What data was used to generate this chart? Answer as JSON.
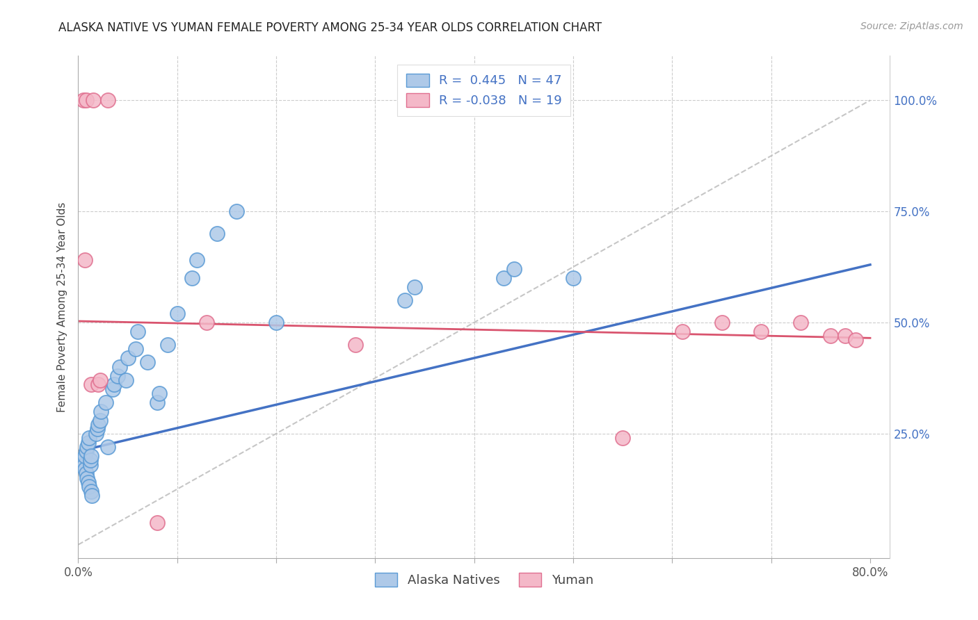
{
  "title": "ALASKA NATIVE VS YUMAN FEMALE POVERTY AMONG 25-34 YEAR OLDS CORRELATION CHART",
  "source": "Source: ZipAtlas.com",
  "ylabel": "Female Poverty Among 25-34 Year Olds",
  "xlim": [
    0.0,
    0.82
  ],
  "ylim": [
    -0.03,
    1.1
  ],
  "alaska_color": "#aec9e8",
  "alaska_edge_color": "#5b9bd5",
  "alaska_line_color": "#4472c4",
  "yuman_color": "#f4b8c8",
  "yuman_edge_color": "#e07090",
  "yuman_line_color": "#d9546e",
  "diagonal_color": "#c0c0c0",
  "alaska_x": [
    0.005,
    0.006,
    0.007,
    0.007,
    0.008,
    0.008,
    0.009,
    0.009,
    0.01,
    0.01,
    0.011,
    0.011,
    0.012,
    0.012,
    0.013,
    0.013,
    0.014,
    0.018,
    0.019,
    0.02,
    0.022,
    0.023,
    0.028,
    0.03,
    0.035,
    0.036,
    0.04,
    0.042,
    0.048,
    0.05,
    0.058,
    0.06,
    0.07,
    0.08,
    0.082,
    0.09,
    0.1,
    0.115,
    0.12,
    0.14,
    0.16,
    0.2,
    0.33,
    0.34,
    0.43,
    0.44,
    0.5
  ],
  "alaska_y": [
    0.19,
    0.18,
    0.17,
    0.2,
    0.16,
    0.21,
    0.15,
    0.22,
    0.14,
    0.23,
    0.13,
    0.24,
    0.18,
    0.19,
    0.12,
    0.2,
    0.11,
    0.25,
    0.26,
    0.27,
    0.28,
    0.3,
    0.32,
    0.22,
    0.35,
    0.36,
    0.38,
    0.4,
    0.37,
    0.42,
    0.44,
    0.48,
    0.41,
    0.32,
    0.34,
    0.45,
    0.52,
    0.6,
    0.64,
    0.7,
    0.75,
    0.5,
    0.55,
    0.58,
    0.6,
    0.62,
    0.6
  ],
  "yuman_x": [
    0.005,
    0.008,
    0.015,
    0.03,
    0.007,
    0.013,
    0.02,
    0.022,
    0.08,
    0.13,
    0.28,
    0.55,
    0.61,
    0.65,
    0.69,
    0.73,
    0.76,
    0.775,
    0.785
  ],
  "yuman_y": [
    1.0,
    1.0,
    1.0,
    1.0,
    0.64,
    0.36,
    0.36,
    0.37,
    0.05,
    0.5,
    0.45,
    0.24,
    0.48,
    0.5,
    0.48,
    0.5,
    0.47,
    0.47,
    0.46
  ],
  "r_alaska": 0.445,
  "n_alaska": 47,
  "r_yuman": -0.038,
  "n_yuman": 19,
  "alaska_line_start_y": 0.21,
  "alaska_line_end_y": 0.63,
  "yuman_line_start_y": 0.503,
  "yuman_line_end_y": 0.465
}
